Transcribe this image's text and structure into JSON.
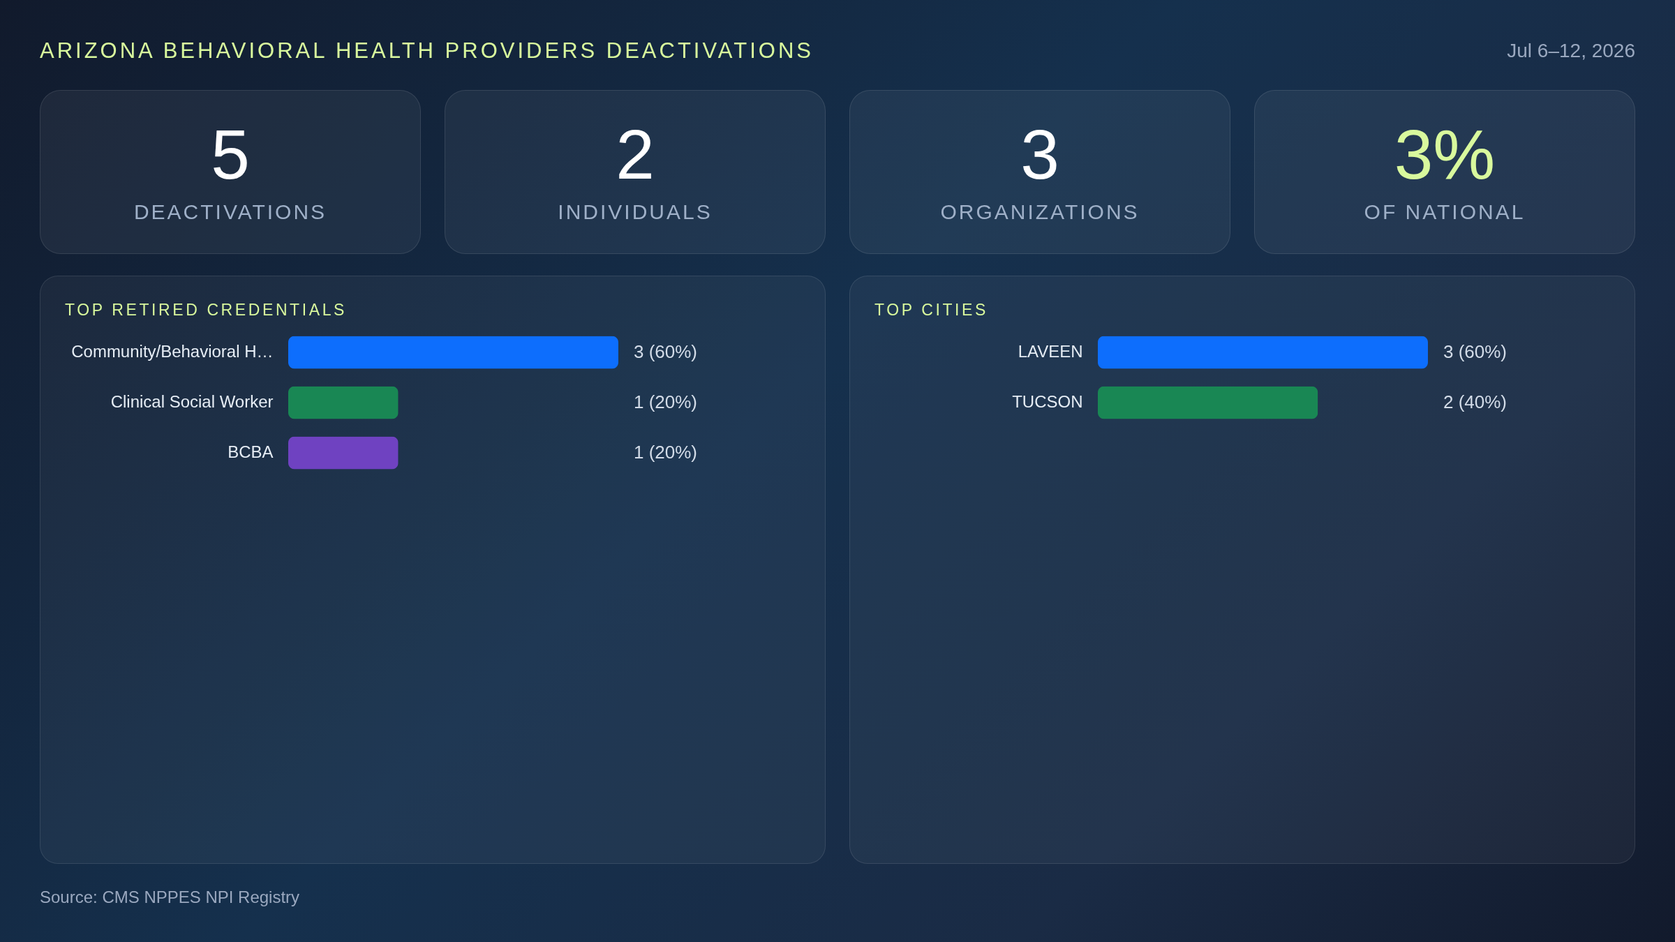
{
  "chart_data": [
    {
      "type": "other",
      "title": "ARIZONA BEHAVIORAL HEALTH PROVIDERS DEACTIVATIONS",
      "subtitle": "Jul 6–12, 2026",
      "categories": [
        "DEACTIVATIONS",
        "INDIVIDUALS",
        "ORGANIZATIONS",
        "OF NATIONAL"
      ],
      "value_labels": [
        "5",
        "2",
        "3",
        "3%"
      ],
      "annotations": [
        "Source: CMS NPPES NPI Registry"
      ]
    },
    {
      "type": "bar",
      "orientation": "horizontal",
      "title": "TOP RETIRED CREDENTIALS",
      "categories": [
        "Community/Behavioral H…",
        "Clinical Social Worker",
        "BCBA"
      ],
      "values": [
        3,
        1,
        1
      ],
      "colors": [
        "#0d6efd",
        "#198754",
        "#6f42c1"
      ],
      "value_labels": [
        "3 (60%)",
        "1 (20%)",
        "1 (20%)"
      ],
      "xlim": [
        0,
        3
      ],
      "tick_labels": "y"
    },
    {
      "type": "bar",
      "orientation": "horizontal",
      "title": "TOP CITIES",
      "categories": [
        "LAVEEN",
        "TUCSON"
      ],
      "values": [
        3,
        2
      ],
      "colors": [
        "#0d6efd",
        "#198754"
      ],
      "value_labels": [
        "3 (60%)",
        "2 (40%)"
      ],
      "xlim": [
        0,
        3
      ],
      "tick_labels": "y"
    }
  ]
}
